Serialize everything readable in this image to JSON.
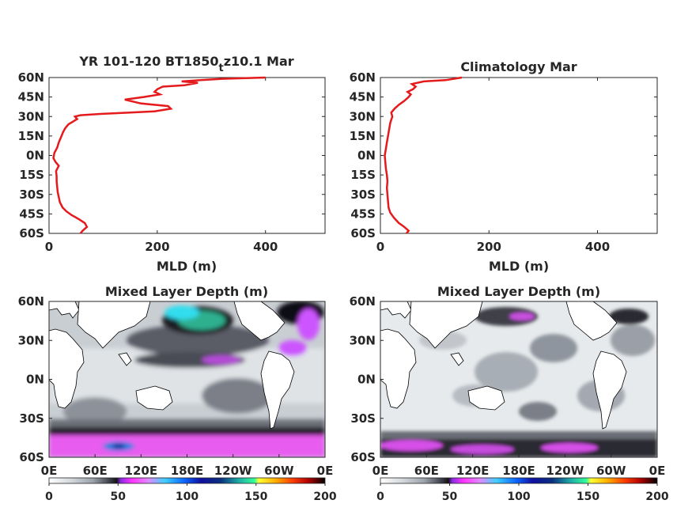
{
  "chart_data": [
    {
      "type": "line",
      "title": "YR 101-120 BT1850",
      "title_sub": "t",
      "title_tail": "z10.1 Mar",
      "xlabel": "MLD (m)",
      "ylabel": "",
      "xlim": [
        0,
        510
      ],
      "ylim": [
        -60,
        60
      ],
      "xticks": [
        0,
        200,
        400
      ],
      "yticks": [
        {
          "v": 60,
          "label": "60N"
        },
        {
          "v": 45,
          "label": "45N"
        },
        {
          "v": 30,
          "label": "30N"
        },
        {
          "v": 15,
          "label": "15N"
        },
        {
          "v": 0,
          "label": "0N"
        },
        {
          "v": -15,
          "label": "15S"
        },
        {
          "v": -30,
          "label": "30S"
        },
        {
          "v": -45,
          "label": "45S"
        },
        {
          "v": -60,
          "label": "60S"
        }
      ],
      "line_color": "#e41a1c",
      "points": [
        [
          58,
          -60
        ],
        [
          62,
          -58
        ],
        [
          70,
          -55
        ],
        [
          66,
          -52
        ],
        [
          55,
          -49
        ],
        [
          42,
          -46
        ],
        [
          32,
          -43
        ],
        [
          25,
          -40
        ],
        [
          20,
          -36
        ],
        [
          18,
          -32
        ],
        [
          16,
          -28
        ],
        [
          15,
          -24
        ],
        [
          14,
          -20
        ],
        [
          14,
          -16
        ],
        [
          13,
          -12
        ],
        [
          18,
          -8
        ],
        [
          12,
          -5
        ],
        [
          8,
          -2
        ],
        [
          10,
          2
        ],
        [
          15,
          6
        ],
        [
          18,
          10
        ],
        [
          22,
          14
        ],
        [
          26,
          18
        ],
        [
          30,
          21
        ],
        [
          36,
          24
        ],
        [
          44,
          26
        ],
        [
          52,
          28
        ],
        [
          48,
          30
        ],
        [
          58,
          31
        ],
        [
          95,
          32
        ],
        [
          150,
          33
        ],
        [
          195,
          34
        ],
        [
          225,
          36
        ],
        [
          220,
          38
        ],
        [
          170,
          40
        ],
        [
          140,
          43
        ],
        [
          175,
          45
        ],
        [
          205,
          47
        ],
        [
          195,
          49
        ],
        [
          200,
          51
        ],
        [
          210,
          53
        ],
        [
          250,
          54
        ],
        [
          275,
          56
        ],
        [
          245,
          57
        ],
        [
          280,
          58
        ],
        [
          320,
          59
        ],
        [
          400,
          60
        ]
      ]
    },
    {
      "type": "line",
      "title": "Climatology Mar",
      "xlabel": "MLD (m)",
      "ylabel": "",
      "xlim": [
        0,
        510
      ],
      "ylim": [
        -60,
        60
      ],
      "xticks": [
        0,
        200,
        400
      ],
      "yticks": [
        {
          "v": 60,
          "label": "60N"
        },
        {
          "v": 45,
          "label": "45N"
        },
        {
          "v": 30,
          "label": "30N"
        },
        {
          "v": 15,
          "label": "15N"
        },
        {
          "v": 0,
          "label": "0N"
        },
        {
          "v": -15,
          "label": "15S"
        },
        {
          "v": -30,
          "label": "30S"
        },
        {
          "v": -45,
          "label": "45S"
        },
        {
          "v": -60,
          "label": "60S"
        }
      ],
      "line_color": "#e41a1c",
      "points": [
        [
          48,
          -60
        ],
        [
          52,
          -58
        ],
        [
          44,
          -55
        ],
        [
          34,
          -52
        ],
        [
          25,
          -48
        ],
        [
          18,
          -44
        ],
        [
          15,
          -40
        ],
        [
          14,
          -35
        ],
        [
          13,
          -30
        ],
        [
          12,
          -25
        ],
        [
          13,
          -20
        ],
        [
          12,
          -15
        ],
        [
          10,
          -10
        ],
        [
          9,
          -5
        ],
        [
          8,
          0
        ],
        [
          10,
          5
        ],
        [
          12,
          10
        ],
        [
          14,
          15
        ],
        [
          16,
          20
        ],
        [
          18,
          25
        ],
        [
          22,
          30
        ],
        [
          20,
          33
        ],
        [
          26,
          36
        ],
        [
          34,
          39
        ],
        [
          44,
          42
        ],
        [
          52,
          45
        ],
        [
          56,
          47
        ],
        [
          50,
          49
        ],
        [
          60,
          51
        ],
        [
          65,
          53
        ],
        [
          58,
          55
        ],
        [
          80,
          57
        ],
        [
          120,
          58
        ],
        [
          150,
          60
        ]
      ]
    },
    {
      "type": "heatmap",
      "title": "Mixed Layer Depth (m)",
      "yticks": [
        "60N",
        "30N",
        "0N",
        "30S",
        "60S"
      ],
      "xticks": [
        "0E",
        "60E",
        "120E",
        "180E",
        "120W",
        "60W",
        "0E"
      ],
      "colorbar": {
        "ticks": [
          0,
          50,
          100,
          150,
          200
        ],
        "colors": [
          "#ffffff",
          "#d9dde0",
          "#9aa0a8",
          "#4f4f5c",
          "#141418",
          "#8a2be2",
          "#ff33ff",
          "#e066ff",
          "#33ccff",
          "#0066ff",
          "#1a1aa0",
          "#0b2e7d",
          "#1f77b4",
          "#20c0a0",
          "#33ff99",
          "#ffff00",
          "#ffb000",
          "#ff4000",
          "#c00000",
          "#000000"
        ]
      }
    },
    {
      "type": "heatmap",
      "title": "Mixed Layer Depth (m)",
      "yticks": [
        "60N",
        "30N",
        "0N",
        "30S",
        "60S"
      ],
      "xticks": [
        "0E",
        "60E",
        "120E",
        "180E",
        "120W",
        "60W",
        "0E"
      ],
      "colorbar": {
        "ticks": [
          0,
          50,
          100,
          150,
          200
        ]
      }
    }
  ]
}
